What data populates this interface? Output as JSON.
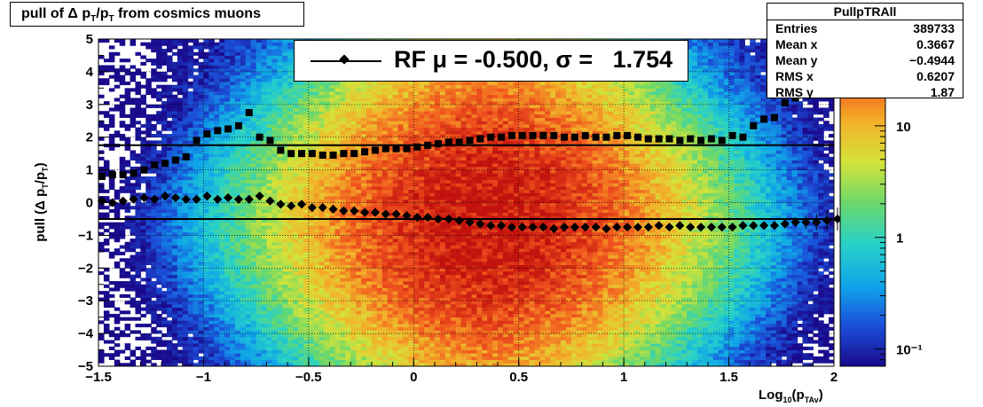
{
  "title": {
    "prefix": "pull of Δ p",
    "sub1": "T",
    "mid": "/p",
    "sub2": "T",
    "suffix": " from cosmics muons"
  },
  "stats": {
    "name": "PullpTRAll",
    "rows": [
      {
        "label": "Entries",
        "value": "389733"
      },
      {
        "label": "Mean x",
        "value": "0.3667"
      },
      {
        "label": "Mean y",
        "value": "−0.4944"
      },
      {
        "label": "RMS x",
        "value": "0.6207"
      },
      {
        "label": "RMS y",
        "value": "1.87"
      }
    ]
  },
  "legend": {
    "text": "RF μ = -0.500, σ =   1.754"
  },
  "axes": {
    "ylabel_prefix": "pull (Δ p",
    "ylabel_sub1": "T",
    "ylabel_mid": "/p",
    "ylabel_sub2": "T",
    "ylabel_suffix": ")",
    "xlabel_prefix": "Log",
    "xlabel_sub1": "10",
    "xlabel_mid": "(p",
    "xlabel_sub2": "TAv",
    "xlabel_suffix": ")"
  },
  "colors": {
    "markers": "#000000",
    "fit_lines": "#000000",
    "palette": [
      "#1a0a8c",
      "#1b4fd9",
      "#10a6e8",
      "#27d1c8",
      "#6cd86a",
      "#d4e33a",
      "#f3b02a",
      "#f0541e",
      "#c2120e"
    ]
  },
  "chart_data": {
    "type": "heatmap",
    "xlim": [
      -1.5,
      2
    ],
    "ylim": [
      -5,
      5
    ],
    "x_ticks": [
      -1.5,
      -1,
      -0.5,
      0,
      0.5,
      1,
      1.5,
      2
    ],
    "x_tick_labels": [
      "−1.5",
      "−1",
      "−0.5",
      "0",
      "0.5",
      "1",
      "1.5",
      "2"
    ],
    "y_ticks": [
      -5,
      -4,
      -3,
      -2,
      -1,
      0,
      1,
      2,
      3,
      4,
      5
    ],
    "y_tick_labels": [
      "−5",
      "−4",
      "−3",
      "−2",
      "−1",
      "0",
      "1",
      "2",
      "3",
      "4",
      "5"
    ],
    "z_log": true,
    "z_ticks": [
      0.1,
      1,
      10
    ],
    "z_tick_labels": [
      "10⁻¹",
      "1",
      "10"
    ],
    "z_range": [
      0.07,
      60
    ],
    "grid": true,
    "fit_lines": [
      {
        "name": "mu",
        "y": -0.5
      },
      {
        "name": "sigma",
        "y": 1.754
      }
    ],
    "series": [
      {
        "name": "mean",
        "marker": "diamond",
        "x": [
          -1.5,
          -1.45,
          -1.4,
          -1.35,
          -1.3,
          -1.25,
          -1.2,
          -1.15,
          -1.1,
          -1.05,
          -1.0,
          -0.95,
          -0.9,
          -0.85,
          -0.8,
          -0.75,
          -0.7,
          -0.65,
          -0.6,
          -0.55,
          -0.5,
          -0.45,
          -0.4,
          -0.35,
          -0.3,
          -0.25,
          -0.2,
          -0.15,
          -0.1,
          -0.05,
          0.0,
          0.05,
          0.1,
          0.15,
          0.2,
          0.25,
          0.3,
          0.35,
          0.4,
          0.45,
          0.5,
          0.55,
          0.6,
          0.65,
          0.7,
          0.75,
          0.8,
          0.85,
          0.9,
          0.95,
          1.0,
          1.05,
          1.1,
          1.15,
          1.2,
          1.25,
          1.3,
          1.35,
          1.4,
          1.45,
          1.5,
          1.55,
          1.6,
          1.65,
          1.7,
          1.75,
          1.8,
          1.85,
          1.9,
          1.95,
          2.0
        ],
        "y": [
          0.05,
          0.0,
          0.05,
          0.1,
          0.15,
          0.1,
          0.2,
          0.15,
          0.1,
          0.1,
          0.2,
          0.1,
          0.15,
          0.1,
          0.1,
          0.2,
          0.05,
          -0.05,
          -0.1,
          -0.05,
          -0.15,
          -0.15,
          -0.2,
          -0.25,
          -0.25,
          -0.3,
          -0.3,
          -0.35,
          -0.35,
          -0.4,
          -0.45,
          -0.45,
          -0.5,
          -0.5,
          -0.55,
          -0.6,
          -0.65,
          -0.7,
          -0.7,
          -0.75,
          -0.75,
          -0.75,
          -0.75,
          -0.8,
          -0.75,
          -0.75,
          -0.75,
          -0.75,
          -0.8,
          -0.75,
          -0.75,
          -0.75,
          -0.75,
          -0.7,
          -0.75,
          -0.7,
          -0.75,
          -0.75,
          -0.75,
          -0.75,
          -0.75,
          -0.7,
          -0.7,
          -0.7,
          -0.7,
          -0.65,
          -0.6,
          -0.6,
          -0.6,
          -0.55,
          -0.5
        ],
        "err": [
          0.15,
          0.12,
          0.1,
          0.1,
          0.1,
          0.1,
          0.1,
          0.1,
          0.08,
          0.08,
          0.08,
          0.06,
          0.06,
          0.06,
          0.06,
          0.06,
          0.05,
          0.04,
          0.04,
          0.03,
          0.03,
          0.03,
          0.03,
          0.03,
          0.02,
          0.02,
          0.02,
          0.02,
          0.02,
          0.02,
          0.02,
          0.02,
          0.02,
          0.02,
          0.02,
          0.02,
          0.02,
          0.02,
          0.02,
          0.02,
          0.02,
          0.02,
          0.02,
          0.02,
          0.02,
          0.02,
          0.02,
          0.02,
          0.02,
          0.02,
          0.02,
          0.02,
          0.02,
          0.02,
          0.03,
          0.03,
          0.03,
          0.04,
          0.04,
          0.05,
          0.05,
          0.06,
          0.06,
          0.08,
          0.1,
          0.12,
          0.15,
          0.2,
          0.25,
          0.3,
          0.35
        ]
      },
      {
        "name": "rms",
        "marker": "square",
        "x": [
          -1.5,
          -1.45,
          -1.4,
          -1.35,
          -1.3,
          -1.25,
          -1.2,
          -1.15,
          -1.1,
          -1.05,
          -1.0,
          -0.95,
          -0.9,
          -0.85,
          -0.8,
          -0.75,
          -0.7,
          -0.65,
          -0.6,
          -0.55,
          -0.5,
          -0.45,
          -0.4,
          -0.35,
          -0.3,
          -0.25,
          -0.2,
          -0.15,
          -0.1,
          -0.05,
          0.0,
          0.05,
          0.1,
          0.15,
          0.2,
          0.25,
          0.3,
          0.35,
          0.4,
          0.45,
          0.5,
          0.55,
          0.6,
          0.65,
          0.7,
          0.75,
          0.8,
          0.85,
          0.9,
          0.95,
          1.0,
          1.05,
          1.1,
          1.15,
          1.2,
          1.25,
          1.3,
          1.35,
          1.4,
          1.45,
          1.5,
          1.55,
          1.6,
          1.65,
          1.7,
          1.75,
          1.8,
          1.85,
          1.9,
          1.95,
          2.0
        ],
        "y": [
          0.8,
          0.85,
          0.85,
          0.9,
          1.0,
          1.15,
          1.2,
          1.3,
          1.4,
          1.9,
          2.1,
          2.2,
          2.25,
          2.35,
          2.75,
          2.0,
          1.9,
          1.6,
          1.5,
          1.5,
          1.5,
          1.45,
          1.45,
          1.5,
          1.5,
          1.55,
          1.6,
          1.65,
          1.65,
          1.65,
          1.7,
          1.75,
          1.8,
          1.85,
          1.85,
          1.9,
          1.95,
          2.0,
          2.0,
          2.05,
          2.05,
          2.05,
          2.05,
          2.05,
          2.0,
          2.0,
          2.05,
          2.0,
          2.0,
          2.05,
          2.05,
          2.0,
          1.95,
          1.95,
          1.95,
          1.9,
          1.95,
          1.9,
          1.95,
          1.9,
          2.05,
          2.0,
          2.35,
          2.55,
          2.6,
          3.05,
          3.2,
          3.35,
          3.4,
          3.45,
          4.25
        ]
      }
    ]
  }
}
